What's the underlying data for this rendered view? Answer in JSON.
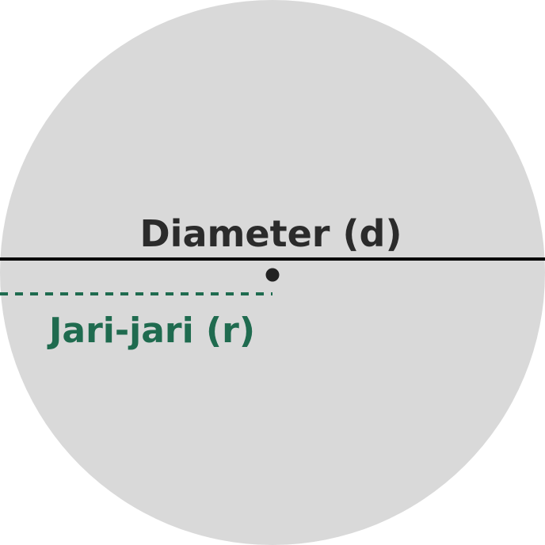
{
  "diagram": {
    "labels": {
      "diameter": "Diameter (d)",
      "radius": "Jari-jari (r)"
    },
    "colors": {
      "circle_fill": "#d9d9d9",
      "diameter_line": "#000000",
      "center_point": "#222222",
      "diameter_text": "#2b2b2b",
      "radius_line": "#1f6b4f",
      "radius_text": "#1f6b4f"
    }
  }
}
